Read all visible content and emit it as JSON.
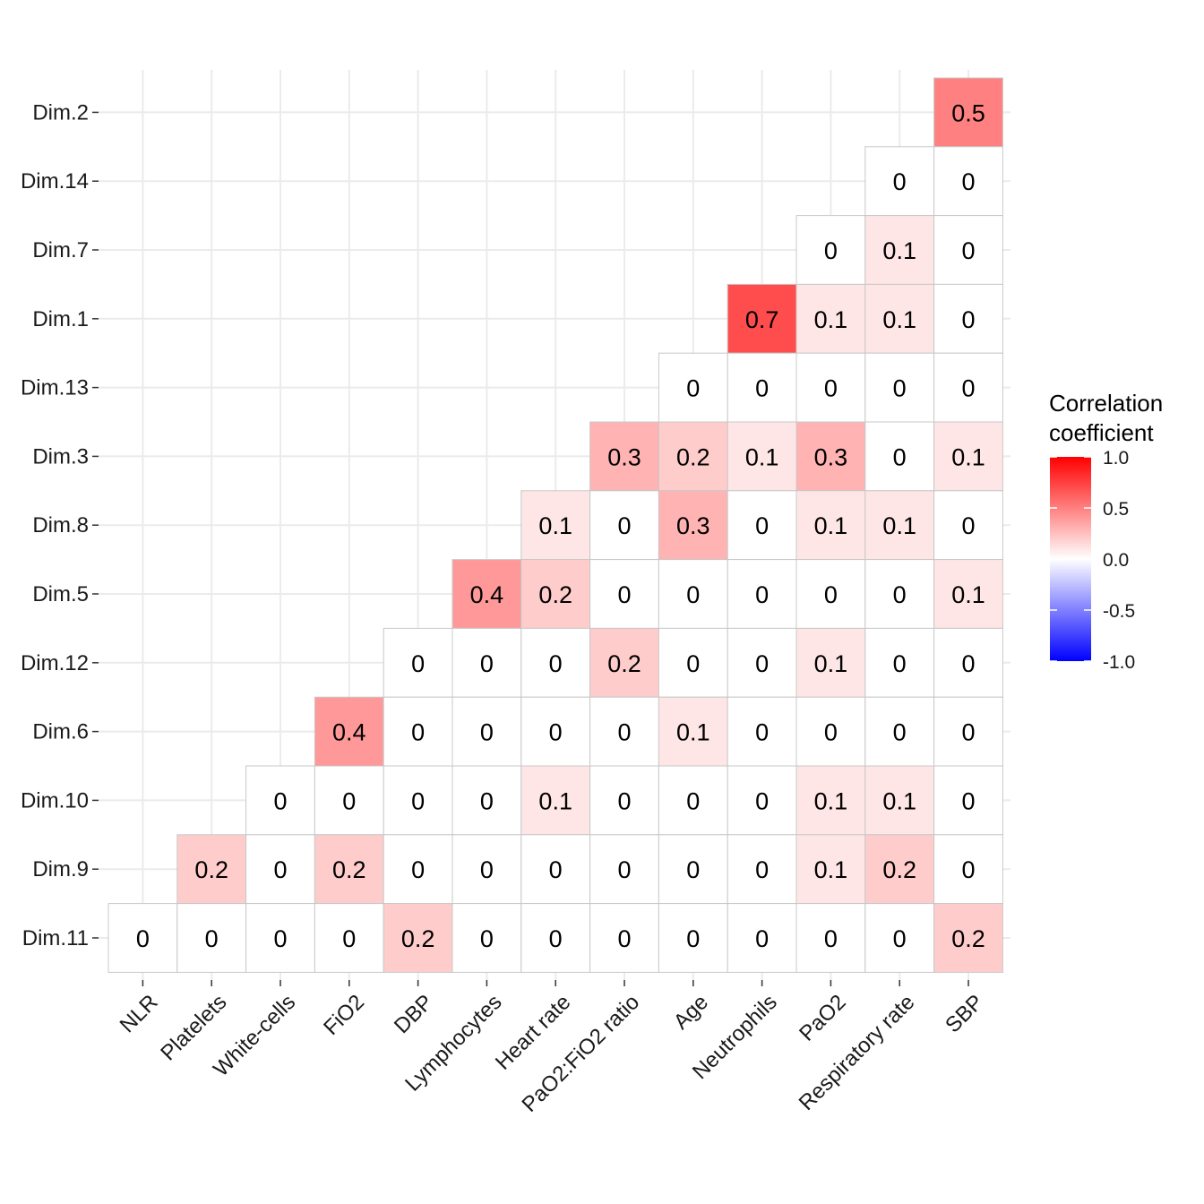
{
  "chart_data": {
    "type": "heatmap",
    "x_categories": [
      "NLR",
      "Platelets",
      "White-cells",
      "FiO2",
      "DBP",
      "Lymphocytes",
      "Heart rate",
      "PaO2:FiO2 ratio",
      "Age",
      "Neutrophils",
      "PaO2",
      "Respiratory rate",
      "SBP"
    ],
    "y_categories": [
      "Dim.2",
      "Dim.14",
      "Dim.7",
      "Dim.1",
      "Dim.13",
      "Dim.3",
      "Dim.8",
      "Dim.5",
      "Dim.12",
      "Dim.6",
      "Dim.10",
      "Dim.9",
      "Dim.11"
    ],
    "values": [
      [
        null,
        null,
        null,
        null,
        null,
        null,
        null,
        null,
        null,
        null,
        null,
        null,
        0.5
      ],
      [
        null,
        null,
        null,
        null,
        null,
        null,
        null,
        null,
        null,
        null,
        null,
        0,
        0
      ],
      [
        null,
        null,
        null,
        null,
        null,
        null,
        null,
        null,
        null,
        null,
        0,
        0.1,
        0
      ],
      [
        null,
        null,
        null,
        null,
        null,
        null,
        null,
        null,
        null,
        0.7,
        0.1,
        0.1,
        0
      ],
      [
        null,
        null,
        null,
        null,
        null,
        null,
        null,
        null,
        0,
        0,
        0,
        0,
        0
      ],
      [
        null,
        null,
        null,
        null,
        null,
        null,
        null,
        0.3,
        0.2,
        0.1,
        0.3,
        0,
        0.1
      ],
      [
        null,
        null,
        null,
        null,
        null,
        null,
        0.1,
        0,
        0.3,
        0,
        0.1,
        0.1,
        0
      ],
      [
        null,
        null,
        null,
        null,
        null,
        0.4,
        0.2,
        0,
        0,
        0,
        0,
        0,
        0.1
      ],
      [
        null,
        null,
        null,
        null,
        0,
        0,
        0,
        0.2,
        0,
        0,
        0.1,
        0,
        0
      ],
      [
        null,
        null,
        null,
        0.4,
        0,
        0,
        0,
        0,
        0.1,
        0,
        0,
        0,
        0
      ],
      [
        null,
        null,
        0,
        0,
        0,
        0,
        0.1,
        0,
        0,
        0,
        0.1,
        0.1,
        0
      ],
      [
        null,
        0.2,
        0,
        0.2,
        0,
        0,
        0,
        0,
        0,
        0,
        0.1,
        0.2,
        0
      ],
      [
        0,
        0,
        0,
        0,
        0.2,
        0,
        0,
        0,
        0,
        0,
        0,
        0,
        0.2
      ]
    ],
    "legend": {
      "title_line1": "Correlation",
      "title_line2": "coefficient",
      "ticks": [
        "1.0",
        "0.5",
        "0.0",
        "-0.5",
        "-1.0"
      ],
      "tick_values": [
        1.0,
        0.5,
        0.0,
        -0.5,
        -1.0
      ],
      "range": [
        -1,
        1
      ],
      "position": "right"
    },
    "colors": {
      "high": "#ff0000",
      "mid": "#ffffff",
      "low": "#0000ff",
      "grid": "#ebebeb",
      "cell_border": "#c8c8c8"
    },
    "grid": true
  }
}
